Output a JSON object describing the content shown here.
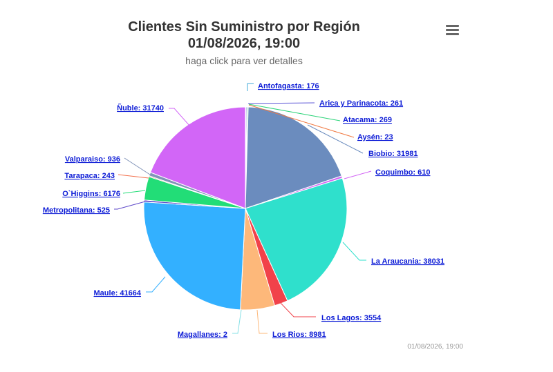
{
  "header": {
    "title_line1": "Clientes Sin Suministro por Región",
    "title_line2": "01/08/2026, 19:00",
    "subtitle": "haga click para ver detalles",
    "menu_icon": "hamburger-menu-icon"
  },
  "footer": {
    "credits": "01/08/2026, 19:00"
  },
  "chart_data": {
    "type": "pie",
    "title": "Clientes Sin Suministro por Región",
    "subtitle": "01/08/2026, 19:00",
    "slices": [
      {
        "name": "Antofagasta",
        "value": 176,
        "label": "Antofagasta: 176",
        "color": "#3fa9d9"
      },
      {
        "name": "Arica y Parinacota",
        "value": 261,
        "label": "Arica y Parinacota: 261",
        "color": "#5b55d6"
      },
      {
        "name": "Atacama",
        "value": 269,
        "label": "Atacama: 269",
        "color": "#2ed47a"
      },
      {
        "name": "Aysén",
        "value": 23,
        "label": "Aysén: 23",
        "color": "#f07840"
      },
      {
        "name": "Biobio",
        "value": 31981,
        "label": "Biobio: 31981",
        "color": "#6b8cbe"
      },
      {
        "name": "Coquimbo",
        "value": 610,
        "label": "Coquimbo: 610",
        "color": "#d264f5"
      },
      {
        "name": "La Araucania",
        "value": 38031,
        "label": "La Araucania: 38031",
        "color": "#2fe0cc"
      },
      {
        "name": "Los Lagos",
        "value": 3554,
        "label": "Los Lagos: 3554",
        "color": "#f1424a"
      },
      {
        "name": "Los Rios",
        "value": 8981,
        "label": "Los Rios: 8981",
        "color": "#fdb87a"
      },
      {
        "name": "Magallanes",
        "value": 2,
        "label": "Magallanes: 2",
        "color": "#86e0e6"
      },
      {
        "name": "Maule",
        "value": 41664,
        "label": "Maule: 41664",
        "color": "#33b0ff"
      },
      {
        "name": "Metropolitana",
        "value": 525,
        "label": "Metropolitana: 525",
        "color": "#5b45c8"
      },
      {
        "name": "O`Higgins",
        "value": 6176,
        "label": "O`Higgins: 6176",
        "color": "#22dd77"
      },
      {
        "name": "Tarapaca",
        "value": 243,
        "label": "Tarapaca: 243",
        "color": "#f36f4a"
      },
      {
        "name": "Valparaiso",
        "value": 936,
        "label": "Valparaiso: 936",
        "color": "#8093b8"
      },
      {
        "name": "Ñuble",
        "value": 31740,
        "label": "Ñuble: 31740",
        "color": "#d266f7"
      }
    ]
  }
}
